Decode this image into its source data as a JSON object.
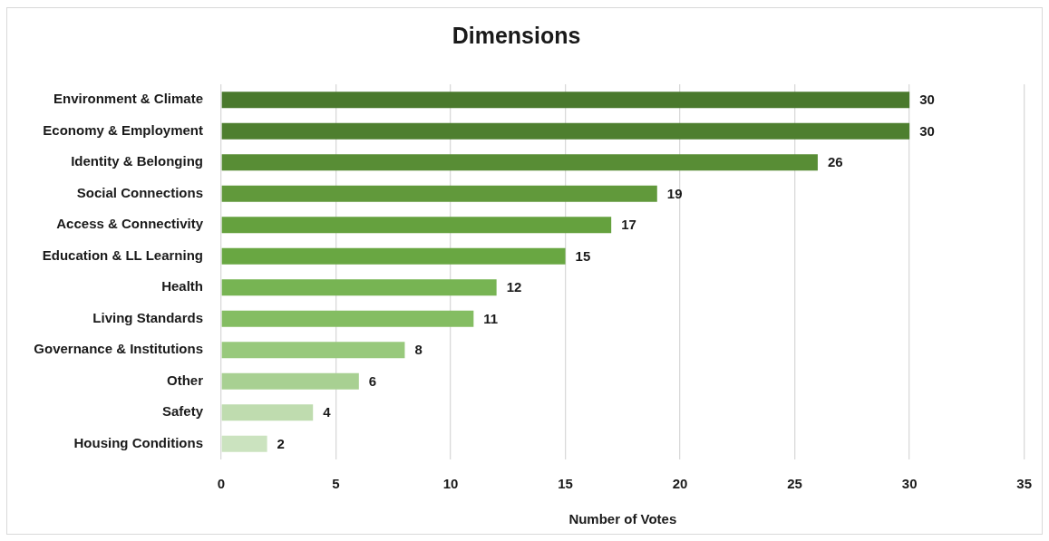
{
  "chart_data": {
    "type": "bar",
    "orientation": "horizontal",
    "title": "Dimensions",
    "xlabel": "Number of Votes",
    "categories": [
      "Environment & Climate",
      "Economy & Employment",
      "Identity & Belonging",
      "Social Connections",
      "Access & Connectivity",
      "Education & LL Learning",
      "Health",
      "Living Standards",
      "Governance & Institutions",
      "Other",
      "Safety",
      "Housing Conditions"
    ],
    "values": [
      30,
      30,
      26,
      19,
      17,
      15,
      12,
      11,
      8,
      6,
      4,
      2
    ],
    "colors": [
      "#4a792d",
      "#4e7f2f",
      "#588d35",
      "#61993b",
      "#65a13e",
      "#69a742",
      "#77b453",
      "#84bd62",
      "#98c97c",
      "#a8d092",
      "#bfdcaf",
      "#cbe3bf"
    ],
    "xlim": [
      0,
      35
    ],
    "xticks": [
      0,
      5,
      10,
      15,
      20,
      25,
      30,
      35
    ],
    "grid": "x",
    "data_labels": true
  }
}
